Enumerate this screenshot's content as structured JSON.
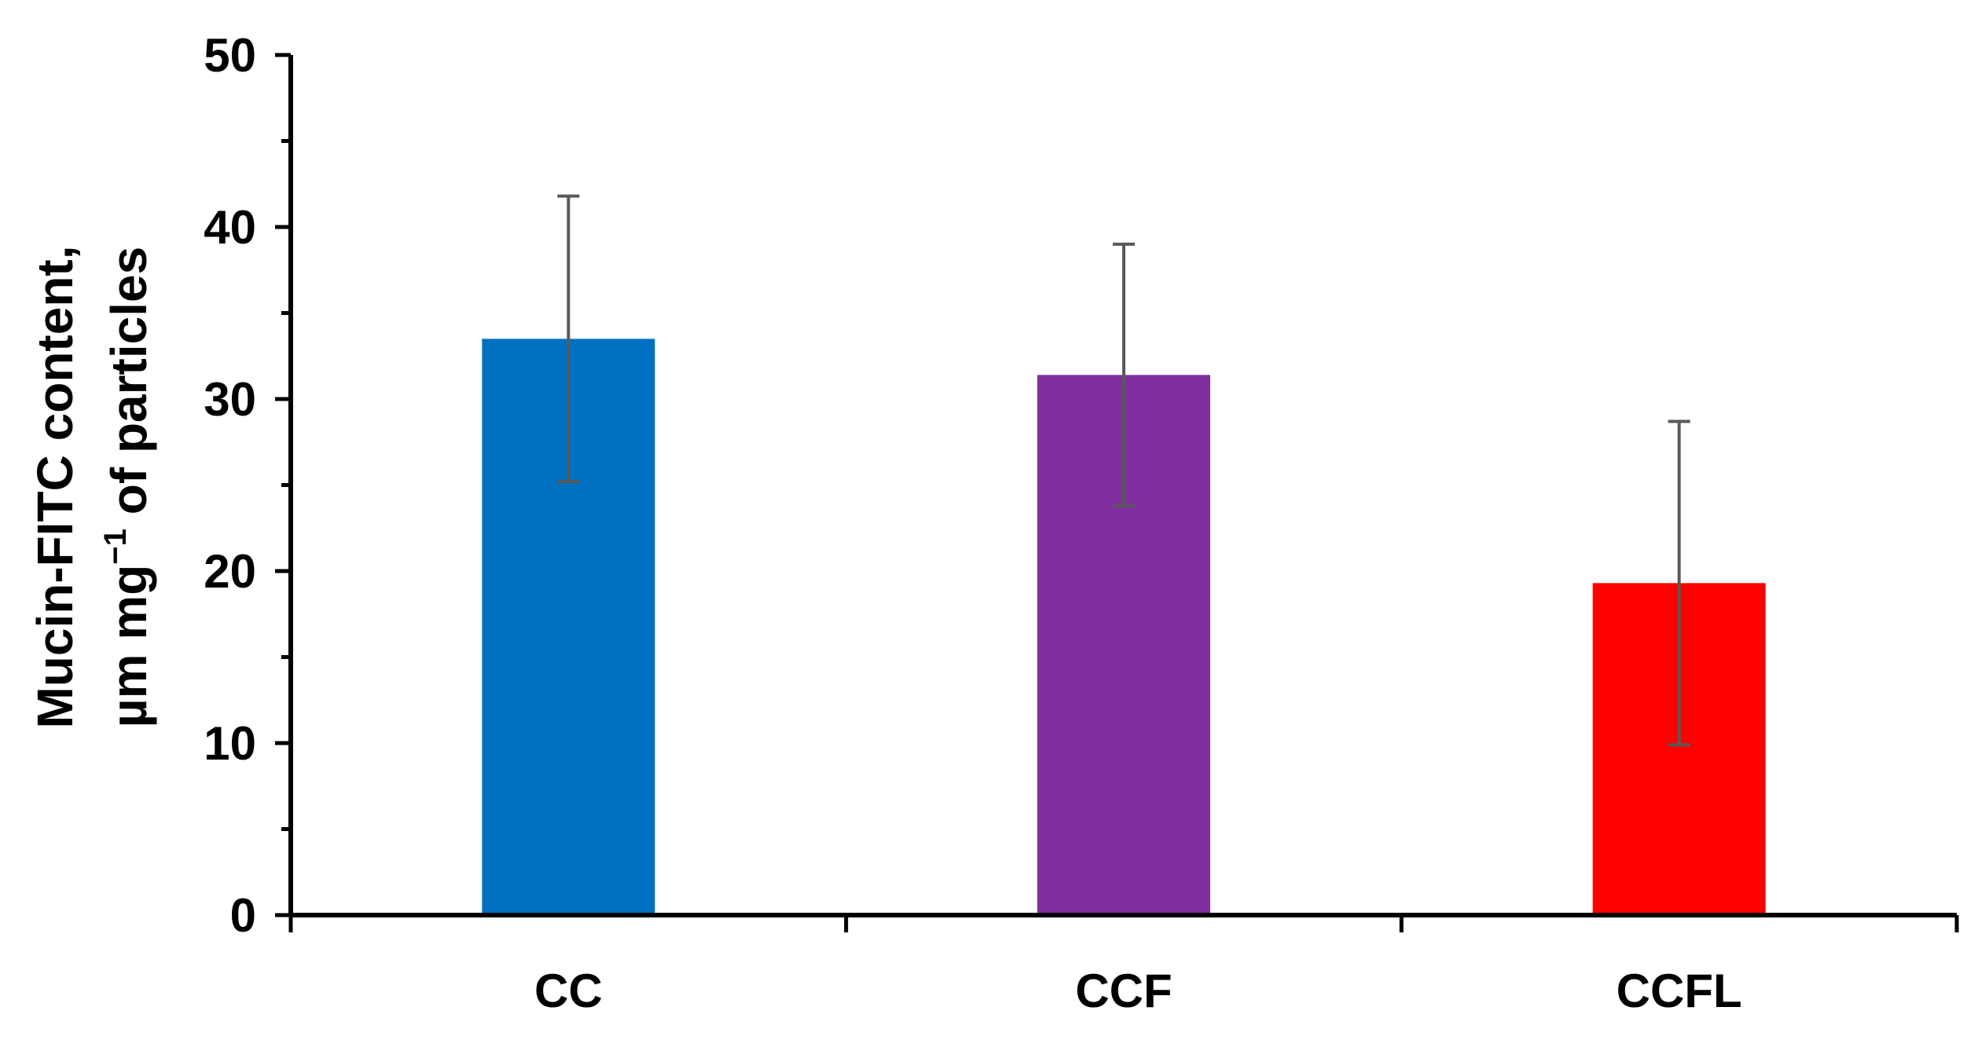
{
  "chart_data": {
    "type": "bar",
    "categories": [
      "CC",
      "CCF",
      "CCFL"
    ],
    "values": [
      33.5,
      31.4,
      19.3
    ],
    "error": [
      8.3,
      7.6,
      9.4
    ],
    "colors": [
      "#0070C0",
      "#7F2F9F",
      "#FF0000"
    ],
    "ylabel": {
      "line1": "Mucin-FITC content,",
      "line2_pre": "µm mg",
      "line2_sup": "−1",
      "line2_post": " of particles"
    },
    "ylim": [
      0,
      50
    ],
    "yticks": [
      "0",
      "10",
      "20",
      "30",
      "40",
      "50"
    ],
    "ytick_values": [
      0,
      10,
      20,
      30,
      40,
      50
    ],
    "grid": false,
    "legend": "none"
  }
}
